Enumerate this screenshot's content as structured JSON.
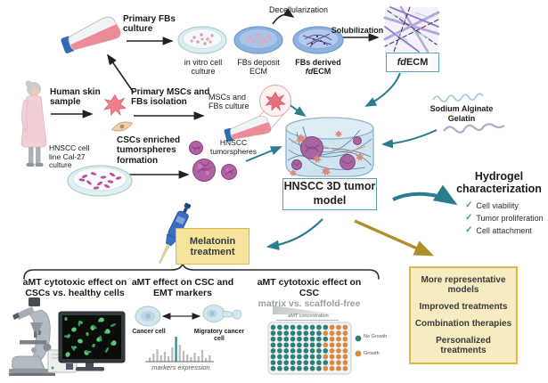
{
  "workflow": {
    "primary_fbs_label": "Primary FBs culture",
    "dish1_label": "in vitro cell culture",
    "dish2_label": "FBs deposit ECM",
    "dish3_line1": "FBs derived",
    "dish3_fd": "fd",
    "dish3_ecm": "ECM",
    "decellularization_label": "Decellularization",
    "solubilization_label": "Solubilization",
    "fdecm_box_fd": "fd",
    "fdecm_box_ecm": "ECM",
    "human_skin_label": "Human skin sample",
    "msc_isolation_label": "Primary MSCs and FBs isolation",
    "msc_culture_label": "MSCs and FBs culture",
    "hnscc_line_label": "HNSCC cell line Cal-27 culture",
    "csc_formation_label": "CSCs enriched tumorspheres formation",
    "tumorspheres_label": "HNSCC tumorspheres"
  },
  "center": {
    "model_label": "HNSCC 3D tumor model",
    "sodium_alginate_label": "Sodium Alginate",
    "gelatin_label": "Gelatin"
  },
  "hydrogel": {
    "title": "Hydrogel characterization",
    "checks": [
      "Cell viability",
      "Tumor proliferation",
      "Cell attachment"
    ]
  },
  "melatonin": {
    "label": "Melatonin treatment"
  },
  "panels": {
    "cytotoxic_healthy": {
      "title": "aMT cytotoxic effect on CSCs vs. healthy cells"
    },
    "emt_markers": {
      "title": "aMT effect on CSC and EMT markers",
      "cell_left_label": "Cancer cell",
      "cell_right_label": "Migratory cancer cell",
      "axis_label": "markers expression",
      "bar_heights": [
        5,
        9,
        14,
        7,
        11,
        6,
        16,
        28,
        19,
        12,
        8,
        5,
        10,
        6,
        13,
        4,
        7
      ],
      "teal_bar_index": 7
    },
    "matrix_scaffold": {
      "title_line1": "aMT cytotoxic effect on CSC",
      "title_line2": "matrix vs. scaffold-free",
      "concentration_label": "aMT concentration",
      "plate": {
        "rows": 8,
        "cols": 12,
        "no_growth_cols": 8
      },
      "legend": [
        {
          "label": "No Growth",
          "color": "#2e7f78"
        },
        {
          "label": "Growth",
          "color": "#d9883f"
        }
      ]
    }
  },
  "outcomes": {
    "items": [
      "More representative models",
      "Improved treatments",
      "Combination therapies",
      "Personalized treatments"
    ]
  },
  "icons": {
    "check": "✓"
  },
  "colors": {
    "teal_arrow": "#2a7c8e",
    "gold_arrow": "#b08f2a",
    "check_green": "#43a181",
    "box_teal_border": "#55a4b2",
    "yellow_box_bg": "#f7ecc0",
    "yellow_box_border": "#d9b94a"
  }
}
